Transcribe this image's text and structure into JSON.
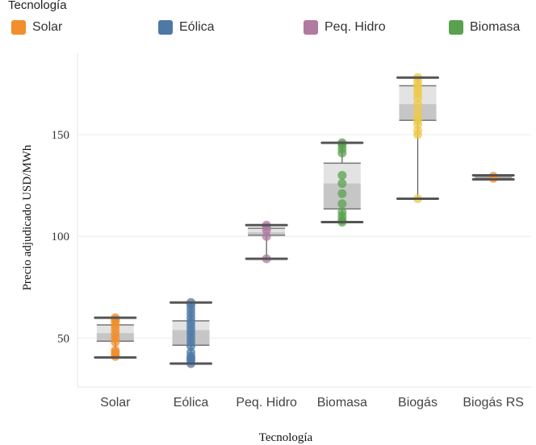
{
  "legend": {
    "title": "Tecnología",
    "items": [
      {
        "label": "Solar",
        "color": "#F28E2B"
      },
      {
        "label": "Eólica",
        "color": "#4E79A7"
      },
      {
        "label": "Peq. Hidro",
        "color": "#B07AA1"
      },
      {
        "label": "Biomasa",
        "color": "#59A14F"
      }
    ]
  },
  "chart_data": {
    "type": "box",
    "xlabel": "Tecnología",
    "ylabel": "Precio adjudicado USD/MWh",
    "ylim": [
      26,
      190
    ],
    "yticks": [
      50,
      100,
      150
    ],
    "grid": true,
    "legend_position": "top",
    "categories": [
      "Solar",
      "Eólica",
      "Peq. Hidro",
      "Biomasa",
      "Biogás",
      "Biogás RS"
    ],
    "boxes": [
      {
        "category": "Solar",
        "min": 40.5,
        "q1": 48.5,
        "median": 52.5,
        "q3": 56.5,
        "max": 60,
        "color": "#F28E2B",
        "points": [
          41,
          42,
          43,
          44,
          48,
          50,
          52,
          54,
          56,
          58,
          59,
          60
        ]
      },
      {
        "category": "Eólica",
        "min": 37.5,
        "q1": 46.5,
        "median": 54,
        "q3": 58.5,
        "max": 67.5,
        "color": "#4E79A7",
        "points": [
          37.5,
          39,
          40,
          41,
          43,
          46,
          48,
          50,
          52,
          54,
          56,
          58,
          60,
          62,
          64,
          66,
          67.5
        ]
      },
      {
        "category": "Peq. Hidro",
        "min": 89,
        "q1": 100.5,
        "median": 102,
        "q3": 104,
        "max": 105.5,
        "color": "#B07AA1",
        "points": [
          89,
          100,
          103,
          104.5,
          105.5
        ]
      },
      {
        "category": "Biomasa",
        "min": 107,
        "q1": 113.5,
        "median": 126,
        "q3": 136,
        "max": 146,
        "color": "#59A14F",
        "points": [
          107,
          108,
          110,
          112,
          116,
          121,
          126,
          130,
          141,
          143,
          145,
          146
        ]
      },
      {
        "category": "Biogás",
        "min": 118.5,
        "q1": 157,
        "median": 165,
        "q3": 174,
        "max": 178,
        "color": "#EDC948",
        "points": [
          118.5,
          150,
          152,
          155,
          157,
          159,
          162,
          165,
          168,
          170,
          172,
          174,
          176,
          178
        ]
      },
      {
        "category": "Biogás RS",
        "min": 128,
        "q1": 128.5,
        "median": 129,
        "q3": 129.5,
        "max": 130,
        "color": "#F28E2B",
        "points": [
          128.5,
          129.5
        ]
      }
    ]
  }
}
